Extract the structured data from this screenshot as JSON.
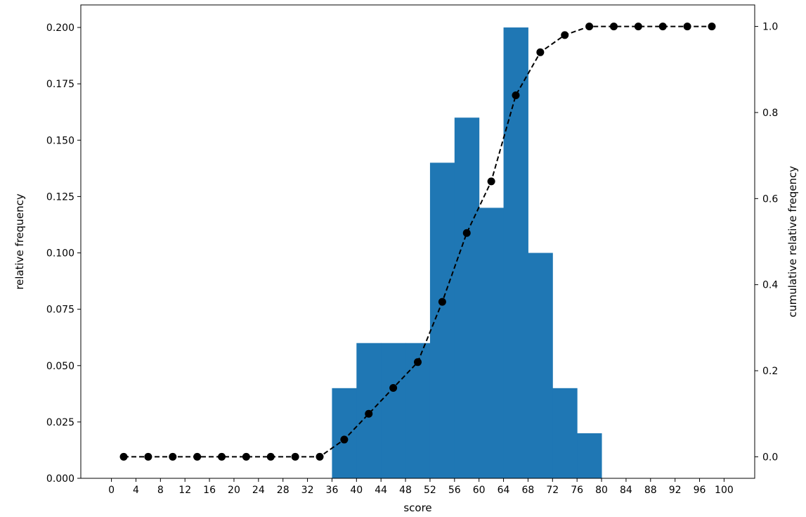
{
  "chart_data": {
    "type": "bar",
    "title": "",
    "xlabel": "score",
    "ylabel": "relative frequency",
    "y2label": "cumulative relative freqency",
    "xlim": [
      -5,
      105
    ],
    "ylim": [
      0,
      0.21
    ],
    "y2lim": [
      -0.05,
      1.05
    ],
    "xticks": [
      0,
      4,
      8,
      12,
      16,
      20,
      24,
      28,
      32,
      36,
      40,
      44,
      48,
      52,
      56,
      60,
      64,
      68,
      72,
      76,
      80,
      84,
      88,
      92,
      96,
      100
    ],
    "yticks": [
      0.0,
      0.025,
      0.05,
      0.075,
      0.1,
      0.125,
      0.15,
      0.175,
      0.2
    ],
    "ytick_labels": [
      "0.000",
      "0.025",
      "0.050",
      "0.075",
      "0.100",
      "0.125",
      "0.150",
      "0.175",
      "0.200"
    ],
    "y2ticks": [
      0.0,
      0.2,
      0.4,
      0.6,
      0.8,
      1.0
    ],
    "y2tick_labels": [
      "0.0",
      "0.2",
      "0.4",
      "0.6",
      "0.8",
      "1.0"
    ],
    "grid": false,
    "histogram": {
      "bin_width": 4,
      "bins_start": [
        36,
        40,
        44,
        48,
        52,
        56,
        60,
        64,
        68,
        72,
        76
      ],
      "values": [
        0.04,
        0.06,
        0.06,
        0.06,
        0.14,
        0.16,
        0.12,
        0.2,
        0.1,
        0.04,
        0.02
      ],
      "color": "#1f77b4"
    },
    "cumulative": {
      "style": "dashed line with circle markers",
      "color": "#000000",
      "x": [
        2,
        6,
        10,
        14,
        18,
        22,
        26,
        30,
        34,
        38,
        42,
        46,
        50,
        54,
        58,
        62,
        66,
        70,
        74,
        78,
        82,
        86,
        90,
        94,
        98
      ],
      "values": [
        0.0,
        0.0,
        0.0,
        0.0,
        0.0,
        0.0,
        0.0,
        0.0,
        0.0,
        0.04,
        0.1,
        0.16,
        0.22,
        0.36,
        0.52,
        0.64,
        0.84,
        0.94,
        0.98,
        1.0,
        1.0,
        1.0,
        1.0,
        1.0,
        1.0
      ]
    }
  }
}
